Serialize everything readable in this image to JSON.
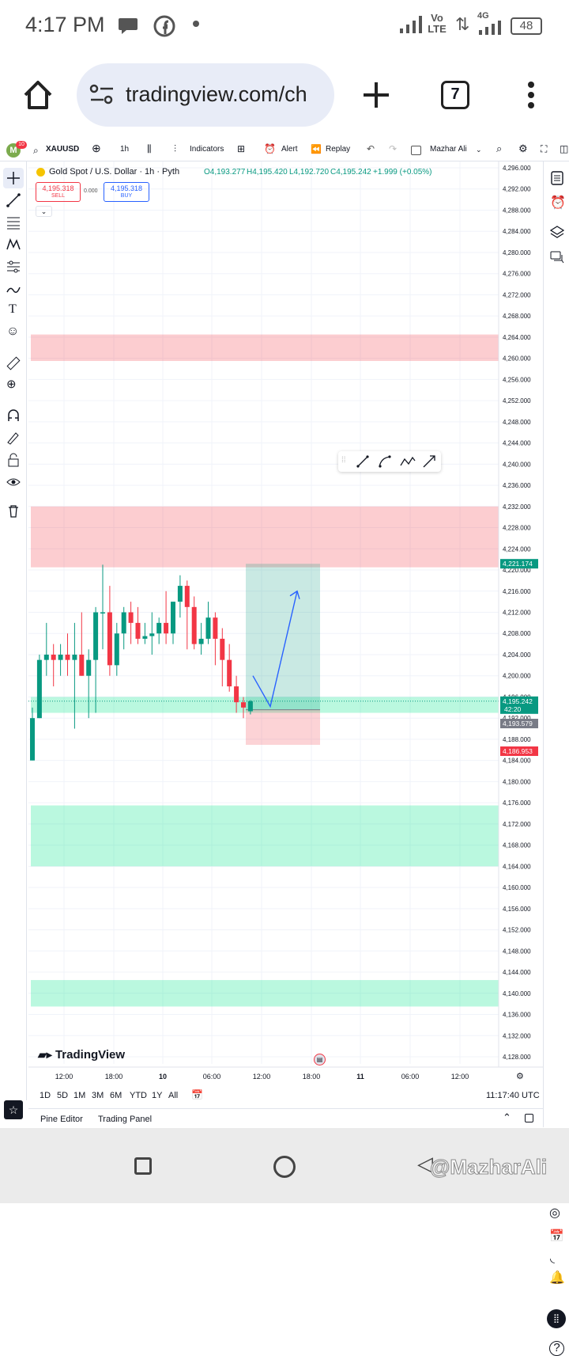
{
  "status_bar": {
    "time": "4:17 PM",
    "network": "Vo LTE",
    "signal": "4G",
    "battery": "48"
  },
  "browser": {
    "url": "tradingview.com/ch",
    "tab_count": "7"
  },
  "toolbar": {
    "avatar_letter": "M",
    "notification_count": "10",
    "symbol": "XAUUSD",
    "interval": "1h",
    "indicators_label": "Indicators",
    "alert_label": "Alert",
    "replay_label": "Replay",
    "layout_name": "Mazhar Ali"
  },
  "legend": {
    "title": "Gold Spot / U.S. Dollar · 1h · Pyth",
    "open": "O4,193.277",
    "high": "H4,195.420",
    "low": "L4,192.720",
    "close": "C4,195.242",
    "change": "+1.999 (+0.05%)",
    "sell_price": "4,195.318",
    "sell_label": "SELL",
    "spread": "0.000",
    "buy_price": "4,195.318",
    "buy_label": "BUY"
  },
  "price_axis": [
    "4,296.000",
    "4,292.000",
    "4,288.000",
    "4,284.000",
    "4,280.000",
    "4,276.000",
    "4,272.000",
    "4,268.000",
    "4,264.000",
    "4,260.000",
    "4,256.000",
    "4,252.000",
    "4,248.000",
    "4,244.000",
    "4,240.000",
    "4,236.000",
    "4,232.000",
    "4,228.000",
    "4,224.000",
    "4,220.000",
    "4,216.000",
    "4,212.000",
    "4,208.000",
    "4,204.000",
    "4,200.000",
    "4,196.000",
    "4,192.000",
    "4,188.000",
    "4,184.000",
    "4,180.000",
    "4,176.000",
    "4,172.000",
    "4,168.000",
    "4,164.000",
    "4,160.000",
    "4,156.000",
    "4,152.000",
    "4,148.000",
    "4,144.000",
    "4,140.000",
    "4,136.000",
    "4,132.000",
    "4,128.000"
  ],
  "price_labels": {
    "target": "4,221.174",
    "current": "4,195.242",
    "countdown": "42:20",
    "entry": "4,193.579",
    "stop": "4,186.953"
  },
  "time_axis": [
    "12:00",
    "18:00",
    "10",
    "06:00",
    "12:00",
    "18:00",
    "11",
    "06:00",
    "12:00"
  ],
  "timeframes": [
    "1D",
    "5D",
    "1M",
    "3M",
    "6M",
    "YTD",
    "1Y",
    "All"
  ],
  "clock": "11:17:40 UTC",
  "panels": {
    "pine": "Pine Editor",
    "trading": "Trading Panel"
  },
  "brand": "TradingView",
  "watermark": "@MazharAli",
  "colors": {
    "up": "#089981",
    "down": "#f23645",
    "red_zone": "rgba(242,54,69,0.25)",
    "green_zone": "rgba(8,231,140,0.28)"
  },
  "chart_data": {
    "type": "candlestick",
    "ylim": [
      4128,
      4296
    ],
    "zones": [
      {
        "kind": "resistance",
        "from": 4259.5,
        "to": 4264.5
      },
      {
        "kind": "resistance",
        "from": 4220.5,
        "to": 4232.0
      },
      {
        "kind": "support",
        "from": 4193.0,
        "to": 4196.0
      },
      {
        "kind": "support",
        "from": 4164.0,
        "to": 4175.5
      },
      {
        "kind": "support",
        "from": 4137.5,
        "to": 4142.5
      }
    ],
    "position": {
      "type": "long",
      "entry": 4193.579,
      "target": 4221.174,
      "stop": 4186.953
    },
    "candles": [
      {
        "o": 4184.0,
        "h": 4194.0,
        "l": 4184.0,
        "c": 4192.0
      },
      {
        "o": 4192.0,
        "h": 4204.0,
        "l": 4192.0,
        "c": 4203.0
      },
      {
        "o": 4203.0,
        "h": 4210.0,
        "l": 4200.0,
        "c": 4204.0
      },
      {
        "o": 4204.0,
        "h": 4206.0,
        "l": 4198.0,
        "c": 4203.0
      },
      {
        "o": 4203.0,
        "h": 4206.0,
        "l": 4200.0,
        "c": 4204.0
      },
      {
        "o": 4204.0,
        "h": 4208.0,
        "l": 4200.0,
        "c": 4203.0
      },
      {
        "o": 4203.0,
        "h": 4210.0,
        "l": 4190.0,
        "c": 4204.0
      },
      {
        "o": 4204.0,
        "h": 4212.0,
        "l": 4200.0,
        "c": 4200.0
      },
      {
        "o": 4200.0,
        "h": 4205.0,
        "l": 4192.0,
        "c": 4203.0
      },
      {
        "o": 4203.0,
        "h": 4213.0,
        "l": 4193.0,
        "c": 4212.0
      },
      {
        "o": 4212.0,
        "h": 4221.0,
        "l": 4205.0,
        "c": 4212.0
      },
      {
        "o": 4212.0,
        "h": 4217.0,
        "l": 4200.0,
        "c": 4202.0
      },
      {
        "o": 4202.0,
        "h": 4210.0,
        "l": 4200.0,
        "c": 4208.0
      },
      {
        "o": 4208.0,
        "h": 4213.0,
        "l": 4205.0,
        "c": 4212.0
      },
      {
        "o": 4212.0,
        "h": 4214.0,
        "l": 4206.0,
        "c": 4210.0
      },
      {
        "o": 4210.0,
        "h": 4213.0,
        "l": 4206.0,
        "c": 4207.0
      },
      {
        "o": 4207.0,
        "h": 4210.0,
        "l": 4206.0,
        "c": 4207.5
      },
      {
        "o": 4207.5,
        "h": 4212.0,
        "l": 4204.0,
        "c": 4208.0
      },
      {
        "o": 4208.0,
        "h": 4211.0,
        "l": 4206.0,
        "c": 4210.0
      },
      {
        "o": 4210.0,
        "h": 4216.0,
        "l": 4206.0,
        "c": 4208.0
      },
      {
        "o": 4208.0,
        "h": 4214.0,
        "l": 4206.0,
        "c": 4214.0
      },
      {
        "o": 4214.0,
        "h": 4219.0,
        "l": 4211.0,
        "c": 4217.0
      },
      {
        "o": 4217.0,
        "h": 4218.0,
        "l": 4205.0,
        "c": 4213.0
      },
      {
        "o": 4213.0,
        "h": 4215.0,
        "l": 4205.0,
        "c": 4206.0
      },
      {
        "o": 4206.0,
        "h": 4210.0,
        "l": 4204.0,
        "c": 4207.0
      },
      {
        "o": 4207.0,
        "h": 4214.0,
        "l": 4206.0,
        "c": 4211.0
      },
      {
        "o": 4211.0,
        "h": 4212.0,
        "l": 4202.0,
        "c": 4207.0
      },
      {
        "o": 4207.0,
        "h": 4209.0,
        "l": 4198.0,
        "c": 4203.0
      },
      {
        "o": 4203.0,
        "h": 4206.0,
        "l": 4197.0,
        "c": 4198.0
      },
      {
        "o": 4198.0,
        "h": 4200.0,
        "l": 4193.0,
        "c": 4195.0
      },
      {
        "o": 4195.0,
        "h": 4196.0,
        "l": 4192.0,
        "c": 4194.0
      },
      {
        "o": 4193.3,
        "h": 4195.4,
        "l": 4192.7,
        "c": 4195.2
      }
    ]
  }
}
